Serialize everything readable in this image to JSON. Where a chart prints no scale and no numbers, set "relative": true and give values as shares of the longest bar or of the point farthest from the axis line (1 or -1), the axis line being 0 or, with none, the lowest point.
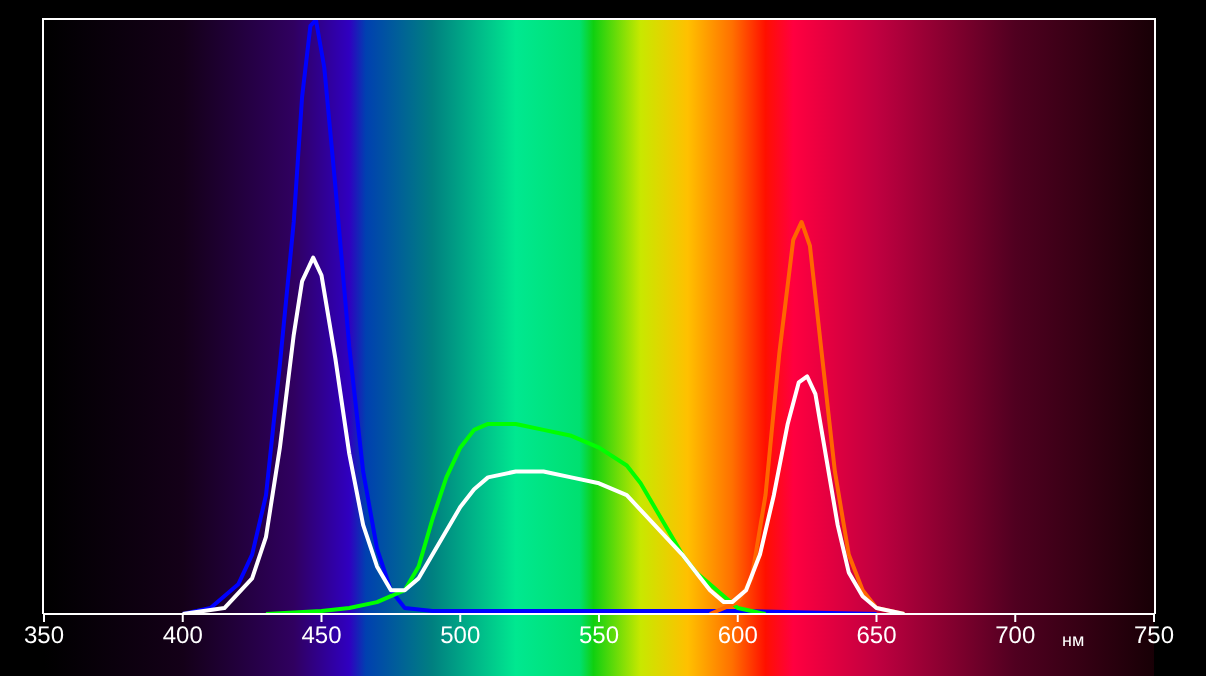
{
  "chart_data": {
    "type": "line",
    "relative": true,
    "xlabel": "нм",
    "xlim": [
      350,
      750
    ],
    "xticks": [
      350,
      400,
      450,
      500,
      550,
      600,
      650,
      700,
      750
    ],
    "grid": false,
    "legend": false,
    "marker": "none",
    "line_style": "solid",
    "series": [
      {
        "color": "#0000ff",
        "x": [
          400,
          410,
          420,
          425,
          430,
          435,
          440,
          443,
          446,
          448,
          451,
          455,
          460,
          465,
          470,
          475,
          480,
          490,
          550,
          600,
          650
        ],
        "values": [
          0,
          0.01,
          0.05,
          0.1,
          0.2,
          0.42,
          0.66,
          0.87,
          0.99,
          1,
          0.92,
          0.72,
          0.45,
          0.24,
          0.11,
          0.04,
          0.01,
          0.005,
          0.005,
          0.005,
          0
        ]
      },
      {
        "color": "#00ff00",
        "x": [
          430,
          450,
          460,
          470,
          475,
          480,
          485,
          490,
          495,
          500,
          505,
          510,
          515,
          520,
          530,
          540,
          550,
          560,
          565,
          570,
          575,
          580,
          585,
          590,
          595,
          600,
          605,
          610
        ],
        "values": [
          0,
          0.005,
          0.01,
          0.02,
          0.03,
          0.04,
          0.08,
          0.16,
          0.23,
          0.28,
          0.31,
          0.32,
          0.32,
          0.32,
          0.31,
          0.3,
          0.28,
          0.25,
          0.22,
          0.18,
          0.14,
          0.1,
          0.07,
          0.05,
          0.03,
          0.01,
          0.005,
          0
        ]
      },
      {
        "color": "#ff6600",
        "x": [
          590,
          600,
          605,
          610,
          615,
          620,
          623,
          626,
          630,
          635,
          640,
          645,
          650,
          660
        ],
        "values": [
          0,
          0.02,
          0.06,
          0.2,
          0.44,
          0.63,
          0.66,
          0.62,
          0.45,
          0.24,
          0.1,
          0.04,
          0.01,
          0
        ]
      },
      {
        "color": "#ffffff",
        "x": [
          400,
          415,
          425,
          430,
          435,
          440,
          443,
          447,
          450,
          455,
          460,
          465,
          470,
          475,
          480,
          485,
          490,
          495,
          500,
          505,
          510,
          520,
          530,
          540,
          550,
          560,
          570,
          580,
          585,
          590,
          595,
          598,
          603,
          608,
          613,
          618,
          622,
          625,
          628,
          632,
          636,
          640,
          645,
          650,
          660
        ],
        "values": [
          0,
          0.01,
          0.06,
          0.13,
          0.28,
          0.47,
          0.56,
          0.6,
          0.57,
          0.43,
          0.27,
          0.15,
          0.08,
          0.04,
          0.04,
          0.06,
          0.1,
          0.14,
          0.18,
          0.21,
          0.23,
          0.24,
          0.24,
          0.23,
          0.22,
          0.2,
          0.15,
          0.1,
          0.07,
          0.04,
          0.02,
          0.02,
          0.04,
          0.1,
          0.2,
          0.32,
          0.39,
          0.4,
          0.37,
          0.26,
          0.15,
          0.07,
          0.03,
          0.01,
          0
        ]
      }
    ]
  }
}
